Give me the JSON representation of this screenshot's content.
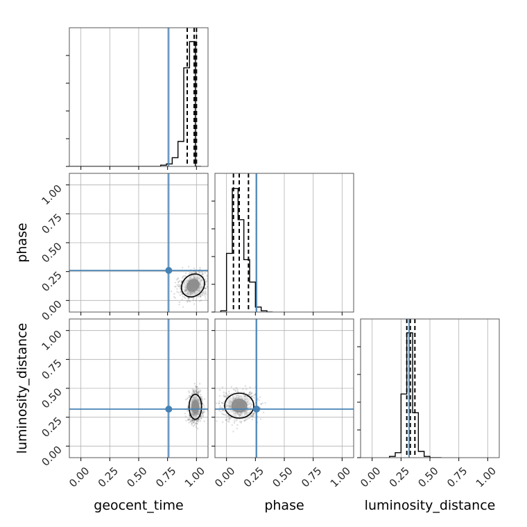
{
  "chart_data": {
    "type": "corner",
    "parameters": [
      "geocent_time",
      "phase",
      "luminosity_distance"
    ],
    "axis_range": [
      -0.1,
      1.1
    ],
    "tick_values": [
      0.0,
      0.25,
      0.5,
      0.75,
      1.0
    ],
    "tick_labels": [
      "0.00",
      "0.25",
      "0.50",
      "0.75",
      "1.00"
    ],
    "grid": true,
    "truths": {
      "geocent_time": 0.76,
      "phase": 0.26,
      "luminosity_distance": 0.32
    },
    "colors": {
      "truth": "#4682b4",
      "hist": "#000000",
      "grid": "#b0b0b0",
      "points": "#404040"
    },
    "marginals": {
      "geocent_time": {
        "bins": [
          0.64,
          0.69,
          0.74,
          0.79,
          0.84,
          0.89,
          0.94,
          0.99,
          1.04
        ],
        "counts": [
          0,
          0.01,
          0.02,
          0.07,
          0.2,
          0.79,
          1.0,
          0,
          0
        ],
        "quantiles": [
          0.92,
          0.98,
          1.0
        ]
      },
      "phase": {
        "bins": [
          -0.05,
          0.0,
          0.05,
          0.1,
          0.15,
          0.2,
          0.25,
          0.3,
          0.35,
          0.4
        ],
        "counts": [
          0.01,
          0.47,
          0.99,
          0.74,
          0.42,
          0.24,
          0.04,
          0.01,
          0
        ],
        "quantiles": [
          0.06,
          0.11,
          0.19
        ]
      },
      "luminosity_distance": {
        "bins": [
          0.15,
          0.2,
          0.25,
          0.3,
          0.35,
          0.4,
          0.45,
          0.5,
          0.55,
          0.6
        ],
        "counts": [
          0.01,
          0.04,
          0.51,
          1.0,
          0.36,
          0.05,
          0.01,
          0,
          0
        ],
        "quantiles": [
          0.3,
          0.33,
          0.37
        ]
      }
    },
    "joint": [
      {
        "x": "geocent_time",
        "y": "phase",
        "center": [
          0.97,
          0.13
        ],
        "spread": [
          0.05,
          0.06
        ],
        "tilt": -0.8,
        "contour_levels": [
          1,
          2
        ]
      },
      {
        "x": "geocent_time",
        "y": "luminosity_distance",
        "center": [
          0.99,
          0.34
        ],
        "spread": [
          0.03,
          0.06
        ],
        "tilt": 0.0,
        "contour_levels": [
          1,
          2
        ]
      },
      {
        "x": "phase",
        "y": "luminosity_distance",
        "center": [
          0.11,
          0.35
        ],
        "spread": [
          0.07,
          0.06
        ],
        "tilt": 0.0,
        "contour_levels": [
          1,
          2
        ]
      }
    ]
  }
}
